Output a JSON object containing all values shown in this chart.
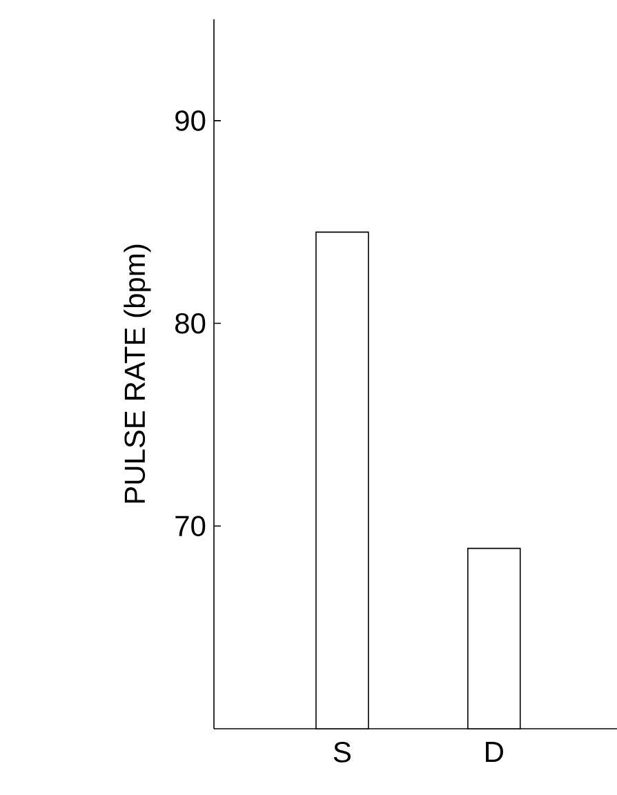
{
  "chart_data": {
    "type": "bar",
    "ylabel": "PULSE RATE (bpm)",
    "categories": [
      "S",
      "D"
    ],
    "values": [
      84.5,
      68.9
    ],
    "color": "#ffffff",
    "ylim": [
      60,
      95
    ],
    "yticks": [
      70,
      80,
      90
    ],
    "grid": false
  }
}
